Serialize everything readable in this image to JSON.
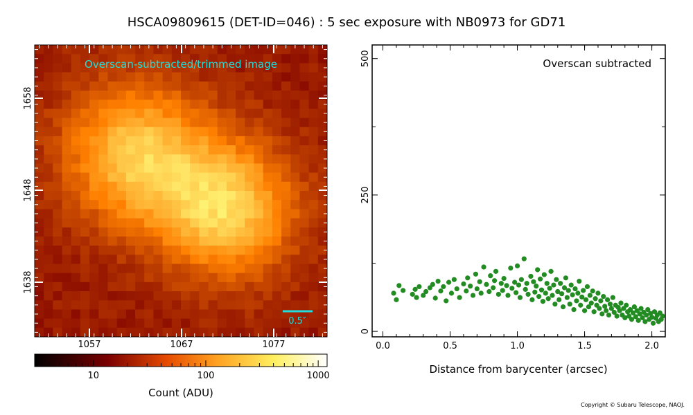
{
  "title": "HSCA09809615 (DET-ID=046) :  5 sec exposure with NB0973 for GD71",
  "copyright": "Copyright © Subaru Telescope, NAOJ.",
  "image_panel": {
    "annotation": "Overscan-subtracted/trimmed image",
    "scale_bar_label": "0.5″",
    "x_ticks": [
      "1057",
      "1067",
      "1077"
    ],
    "y_ticks": [
      "1638",
      "1648",
      "1658"
    ],
    "colors": {
      "annotation": "#22dddd",
      "scale_bar": "#22dddd"
    }
  },
  "colorbar": {
    "label": "Count (ADU)",
    "ticks": [
      "10",
      "100",
      "1000"
    ],
    "scale": "log",
    "range": [
      3,
      1200
    ],
    "colormap": "afmhot"
  },
  "chart_data": {
    "type": "scatter",
    "annotation": "Overscan subtracted",
    "xlabel": "Distance from barycenter (arcsec)",
    "ylabel": "",
    "xlim": [
      -0.08,
      2.1
    ],
    "ylim": [
      -10,
      525
    ],
    "x_ticks": [
      "0.0",
      "0.5",
      "1.0",
      "1.5",
      "2.0"
    ],
    "y_ticks": [
      "0",
      "250",
      "500"
    ],
    "grid": false,
    "marker_color": "#228b22",
    "points": [
      {
        "x": 0.08,
        "y": 70
      },
      {
        "x": 0.1,
        "y": 58
      },
      {
        "x": 0.12,
        "y": 84
      },
      {
        "x": 0.15,
        "y": 75
      },
      {
        "x": 0.22,
        "y": 68
      },
      {
        "x": 0.24,
        "y": 77
      },
      {
        "x": 0.25,
        "y": 62
      },
      {
        "x": 0.27,
        "y": 82
      },
      {
        "x": 0.3,
        "y": 66
      },
      {
        "x": 0.32,
        "y": 73
      },
      {
        "x": 0.35,
        "y": 80
      },
      {
        "x": 0.37,
        "y": 86
      },
      {
        "x": 0.39,
        "y": 61
      },
      {
        "x": 0.41,
        "y": 92
      },
      {
        "x": 0.43,
        "y": 74
      },
      {
        "x": 0.45,
        "y": 82
      },
      {
        "x": 0.47,
        "y": 56
      },
      {
        "x": 0.49,
        "y": 90
      },
      {
        "x": 0.51,
        "y": 70
      },
      {
        "x": 0.53,
        "y": 95
      },
      {
        "x": 0.55,
        "y": 78
      },
      {
        "x": 0.57,
        "y": 62
      },
      {
        "x": 0.6,
        "y": 87
      },
      {
        "x": 0.62,
        "y": 74
      },
      {
        "x": 0.63,
        "y": 98
      },
      {
        "x": 0.65,
        "y": 83
      },
      {
        "x": 0.67,
        "y": 66
      },
      {
        "x": 0.69,
        "y": 105
      },
      {
        "x": 0.7,
        "y": 78
      },
      {
        "x": 0.72,
        "y": 91
      },
      {
        "x": 0.73,
        "y": 70
      },
      {
        "x": 0.75,
        "y": 118
      },
      {
        "x": 0.77,
        "y": 86
      },
      {
        "x": 0.79,
        "y": 73
      },
      {
        "x": 0.8,
        "y": 102
      },
      {
        "x": 0.82,
        "y": 80
      },
      {
        "x": 0.83,
        "y": 93
      },
      {
        "x": 0.84,
        "y": 110
      },
      {
        "x": 0.86,
        "y": 68
      },
      {
        "x": 0.88,
        "y": 88
      },
      {
        "x": 0.89,
        "y": 75
      },
      {
        "x": 0.9,
        "y": 97
      },
      {
        "x": 0.92,
        "y": 84
      },
      {
        "x": 0.93,
        "y": 66
      },
      {
        "x": 0.95,
        "y": 116
      },
      {
        "x": 0.96,
        "y": 79
      },
      {
        "x": 0.98,
        "y": 90
      },
      {
        "x": 0.99,
        "y": 71
      },
      {
        "x": 1.0,
        "y": 120
      },
      {
        "x": 1.01,
        "y": 85
      },
      {
        "x": 1.02,
        "y": 62
      },
      {
        "x": 1.03,
        "y": 95
      },
      {
        "x": 1.05,
        "y": 133
      },
      {
        "x": 1.06,
        "y": 77
      },
      {
        "x": 1.07,
        "y": 88
      },
      {
        "x": 1.08,
        "y": 68
      },
      {
        "x": 1.1,
        "y": 101
      },
      {
        "x": 1.11,
        "y": 58
      },
      {
        "x": 1.12,
        "y": 91
      },
      {
        "x": 1.13,
        "y": 72
      },
      {
        "x": 1.14,
        "y": 83
      },
      {
        "x": 1.15,
        "y": 113
      },
      {
        "x": 1.16,
        "y": 64
      },
      {
        "x": 1.17,
        "y": 96
      },
      {
        "x": 1.18,
        "y": 76
      },
      {
        "x": 1.19,
        "y": 55
      },
      {
        "x": 1.2,
        "y": 104
      },
      {
        "x": 1.21,
        "y": 70
      },
      {
        "x": 1.22,
        "y": 88
      },
      {
        "x": 1.23,
        "y": 60
      },
      {
        "x": 1.24,
        "y": 79
      },
      {
        "x": 1.25,
        "y": 110
      },
      {
        "x": 1.26,
        "y": 66
      },
      {
        "x": 1.27,
        "y": 85
      },
      {
        "x": 1.28,
        "y": 50
      },
      {
        "x": 1.29,
        "y": 95
      },
      {
        "x": 1.3,
        "y": 73
      },
      {
        "x": 1.31,
        "y": 58
      },
      {
        "x": 1.32,
        "y": 88
      },
      {
        "x": 1.33,
        "y": 69
      },
      {
        "x": 1.34,
        "y": 45
      },
      {
        "x": 1.35,
        "y": 80
      },
      {
        "x": 1.36,
        "y": 98
      },
      {
        "x": 1.37,
        "y": 62
      },
      {
        "x": 1.38,
        "y": 75
      },
      {
        "x": 1.39,
        "y": 50
      },
      {
        "x": 1.4,
        "y": 85
      },
      {
        "x": 1.41,
        "y": 67
      },
      {
        "x": 1.42,
        "y": 40
      },
      {
        "x": 1.43,
        "y": 78
      },
      {
        "x": 1.44,
        "y": 56
      },
      {
        "x": 1.45,
        "y": 70
      },
      {
        "x": 1.46,
        "y": 92
      },
      {
        "x": 1.47,
        "y": 48
      },
      {
        "x": 1.48,
        "y": 63
      },
      {
        "x": 1.49,
        "y": 75
      },
      {
        "x": 1.5,
        "y": 38
      },
      {
        "x": 1.51,
        "y": 58
      },
      {
        "x": 1.52,
        "y": 82
      },
      {
        "x": 1.53,
        "y": 45
      },
      {
        "x": 1.54,
        "y": 66
      },
      {
        "x": 1.55,
        "y": 52
      },
      {
        "x": 1.56,
        "y": 74
      },
      {
        "x": 1.57,
        "y": 36
      },
      {
        "x": 1.58,
        "y": 60
      },
      {
        "x": 1.59,
        "y": 48
      },
      {
        "x": 1.6,
        "y": 70
      },
      {
        "x": 1.61,
        "y": 42
      },
      {
        "x": 1.62,
        "y": 56
      },
      {
        "x": 1.63,
        "y": 32
      },
      {
        "x": 1.64,
        "y": 64
      },
      {
        "x": 1.65,
        "y": 46
      },
      {
        "x": 1.66,
        "y": 38
      },
      {
        "x": 1.67,
        "y": 58
      },
      {
        "x": 1.68,
        "y": 30
      },
      {
        "x": 1.69,
        "y": 50
      },
      {
        "x": 1.7,
        "y": 42
      },
      {
        "x": 1.71,
        "y": 62
      },
      {
        "x": 1.72,
        "y": 35
      },
      {
        "x": 1.73,
        "y": 48
      },
      {
        "x": 1.74,
        "y": 28
      },
      {
        "x": 1.75,
        "y": 44
      },
      {
        "x": 1.76,
        "y": 38
      },
      {
        "x": 1.77,
        "y": 52
      },
      {
        "x": 1.78,
        "y": 30
      },
      {
        "x": 1.79,
        "y": 42
      },
      {
        "x": 1.8,
        "y": 25
      },
      {
        "x": 1.81,
        "y": 48
      },
      {
        "x": 1.82,
        "y": 36
      },
      {
        "x": 1.83,
        "y": 28
      },
      {
        "x": 1.84,
        "y": 40
      },
      {
        "x": 1.85,
        "y": 22
      },
      {
        "x": 1.86,
        "y": 34
      },
      {
        "x": 1.87,
        "y": 45
      },
      {
        "x": 1.88,
        "y": 27
      },
      {
        "x": 1.89,
        "y": 38
      },
      {
        "x": 1.9,
        "y": 20
      },
      {
        "x": 1.91,
        "y": 32
      },
      {
        "x": 1.92,
        "y": 42
      },
      {
        "x": 1.93,
        "y": 25
      },
      {
        "x": 1.94,
        "y": 35
      },
      {
        "x": 1.95,
        "y": 18
      },
      {
        "x": 1.96,
        "y": 30
      },
      {
        "x": 1.97,
        "y": 40
      },
      {
        "x": 1.98,
        "y": 22
      },
      {
        "x": 1.99,
        "y": 33
      },
      {
        "x": 2.0,
        "y": 26
      },
      {
        "x": 2.01,
        "y": 15
      },
      {
        "x": 2.02,
        "y": 36
      },
      {
        "x": 2.03,
        "y": 24
      },
      {
        "x": 2.04,
        "y": 30
      },
      {
        "x": 2.05,
        "y": 18
      },
      {
        "x": 2.06,
        "y": 34
      },
      {
        "x": 2.07,
        "y": 22
      },
      {
        "x": 2.08,
        "y": 28
      }
    ]
  }
}
